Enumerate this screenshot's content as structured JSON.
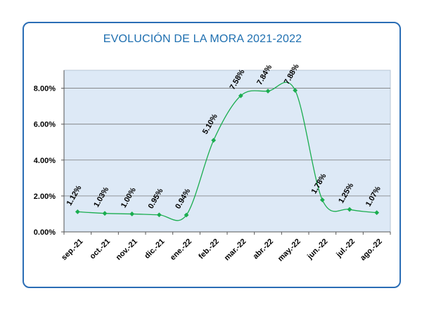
{
  "chart_data": {
    "type": "line",
    "title": "EVOLUCIÓN  DE LA MORA 2021-2022",
    "categories": [
      "sep.-21",
      "oct.-21",
      "nov.-21",
      "dic.-21",
      "ene.-22",
      "feb.-22",
      "mar.-22",
      "abr.-22",
      "may.-22",
      "jun.-22",
      "jul.-22",
      "ago.-22"
    ],
    "series": [
      {
        "values": [
          1.12,
          1.03,
          1.0,
          0.95,
          0.94,
          5.1,
          7.58,
          7.84,
          7.88,
          1.78,
          1.25,
          1.07
        ],
        "labels": [
          "1.12%",
          "1.03%",
          "1.00%",
          "0.95%",
          "0.94%",
          "5.10%",
          "7.58%",
          "7.84%",
          "7.88%",
          "1.78%",
          "1.25%",
          "1.07%"
        ],
        "color": "#1aad4f",
        "smooth": true
      }
    ],
    "ylim": [
      0,
      9
    ],
    "yticks": [
      0,
      2,
      4,
      6,
      8
    ],
    "ytick_labels": [
      "0.00%",
      "2.00%",
      "4.00%",
      "6.00%",
      "8.00%"
    ],
    "grid": true,
    "plot_background": "#dde9f6",
    "frame_color": "#2a6db5",
    "title_color": "#1e6fb0",
    "legend": "none"
  }
}
